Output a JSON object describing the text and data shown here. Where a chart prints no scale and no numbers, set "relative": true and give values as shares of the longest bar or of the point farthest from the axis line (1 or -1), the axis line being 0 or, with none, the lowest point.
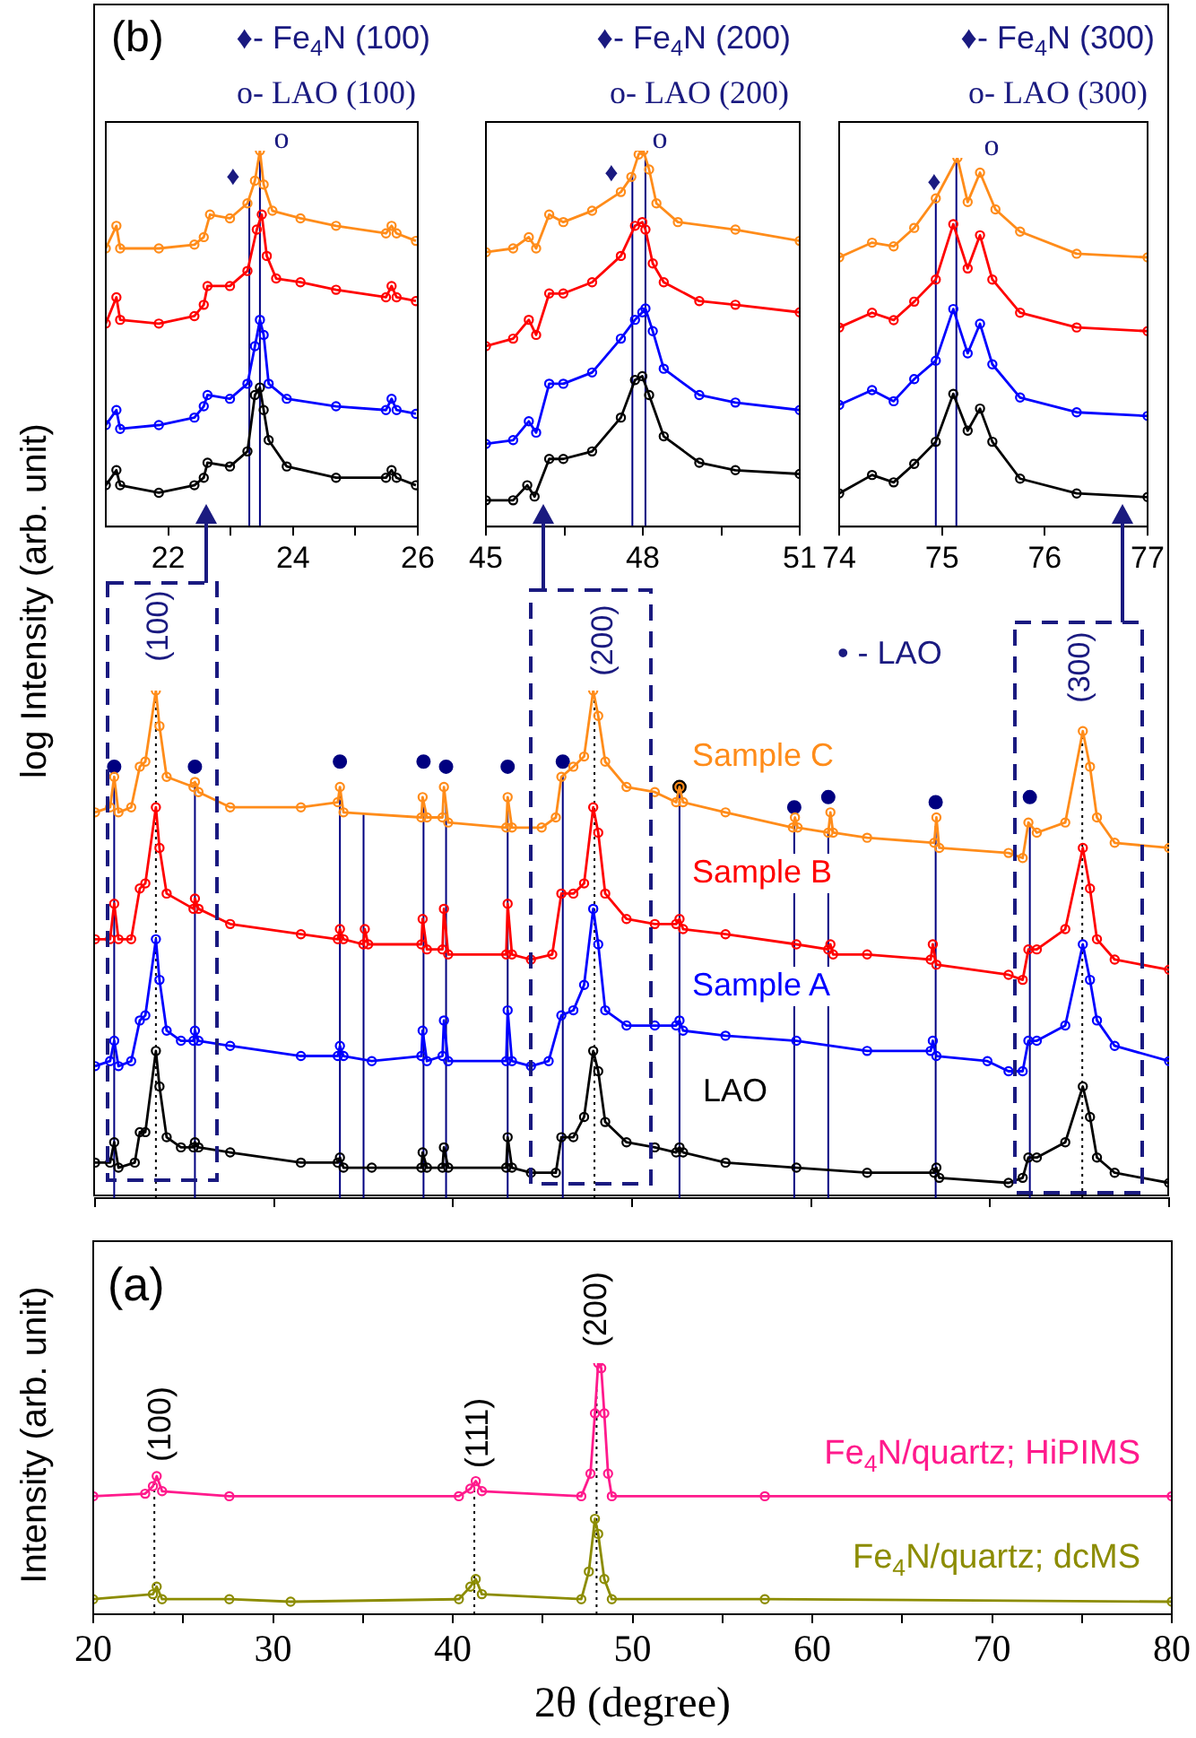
{
  "chart_data": [
    {
      "type": "line",
      "relative": true,
      "xlim": [
        21,
        26
      ],
      "xticks": [
        22,
        {
          "value": 23,
          "label": null
        },
        24,
        {
          "value": 25,
          "label": null
        },
        26
      ],
      "tick_labels": "x",
      "marker": "circle",
      "line_style": "solid",
      "legend": false,
      "grid": false,
      "annotations": [
        "♦- Fe$_{4}$N (100)",
        "o- LAO (100)",
        "♦",
        "o"
      ],
      "ref_lines": [
        {
          "axis": "x",
          "value": 23.3,
          "color": "#000080"
        },
        {
          "axis": "x",
          "value": 23.47,
          "color": "#000080"
        }
      ],
      "series": [
        {
          "color": "#000000",
          "x": [
            21.0,
            21.17,
            21.23,
            21.85,
            22.42,
            22.57,
            22.63,
            22.99,
            23.27,
            23.39,
            23.47,
            23.53,
            23.61,
            23.9,
            24.69,
            25.49,
            25.58,
            25.66,
            25.97
          ],
          "values": [
            0.11,
            0.15,
            0.11,
            0.09,
            0.11,
            0.13,
            0.17,
            0.16,
            0.2,
            0.35,
            0.37,
            0.31,
            0.23,
            0.16,
            0.13,
            0.13,
            0.15,
            0.13,
            0.11
          ]
        },
        {
          "color": "#0000ff",
          "x": [
            21.0,
            21.17,
            21.23,
            21.85,
            22.42,
            22.57,
            22.63,
            22.99,
            23.27,
            23.39,
            23.47,
            23.53,
            23.61,
            23.9,
            24.69,
            25.49,
            25.58,
            25.66,
            25.97
          ],
          "values": [
            0.27,
            0.31,
            0.26,
            0.27,
            0.29,
            0.32,
            0.35,
            0.34,
            0.38,
            0.48,
            0.55,
            0.51,
            0.38,
            0.34,
            0.32,
            0.31,
            0.34,
            0.31,
            0.3
          ]
        },
        {
          "color": "#ff0000",
          "x": [
            21.0,
            21.17,
            21.23,
            21.85,
            22.42,
            22.57,
            22.63,
            22.99,
            23.27,
            23.42,
            23.5,
            23.58,
            23.73,
            24.12,
            24.69,
            25.49,
            25.58,
            25.66,
            25.97
          ],
          "values": [
            0.54,
            0.61,
            0.55,
            0.54,
            0.56,
            0.59,
            0.64,
            0.64,
            0.68,
            0.79,
            0.83,
            0.72,
            0.66,
            0.65,
            0.63,
            0.61,
            0.64,
            0.61,
            0.6
          ]
        },
        {
          "color": "#ff8c1a",
          "x": [
            21.0,
            21.17,
            21.23,
            21.85,
            22.42,
            22.57,
            22.67,
            22.99,
            23.27,
            23.39,
            23.47,
            23.53,
            23.67,
            24.12,
            24.69,
            25.49,
            25.58,
            25.66,
            25.97
          ],
          "values": [
            0.74,
            0.8,
            0.74,
            0.74,
            0.75,
            0.77,
            0.83,
            0.82,
            0.86,
            0.92,
            1.0,
            0.91,
            0.84,
            0.82,
            0.8,
            0.78,
            0.8,
            0.78,
            0.76
          ]
        }
      ]
    },
    {
      "type": "line",
      "relative": true,
      "xlim": [
        45,
        51
      ],
      "xticks": [
        45,
        {
          "value": 46.5,
          "label": null
        },
        48,
        {
          "value": 49.5,
          "label": null
        },
        51
      ],
      "tick_labels": "x",
      "marker": "circle",
      "line_style": "solid",
      "legend": false,
      "grid": false,
      "annotations": [
        "♦- Fe$_{4}$N (200)",
        "o- LAO (200)",
        "♦",
        "o"
      ],
      "ref_lines": [
        {
          "axis": "x",
          "value": 47.8,
          "color": "#000080"
        },
        {
          "axis": "x",
          "value": 48.05,
          "color": "#000080"
        }
      ],
      "series": [
        {
          "color": "#000000",
          "x": [
            45.0,
            45.52,
            45.79,
            45.93,
            46.21,
            46.48,
            47.03,
            47.58,
            47.85,
            47.99,
            48.12,
            48.4,
            49.08,
            49.77,
            51.0
          ],
          "values": [
            0.07,
            0.07,
            0.11,
            0.08,
            0.18,
            0.18,
            0.2,
            0.29,
            0.39,
            0.4,
            0.35,
            0.24,
            0.17,
            0.15,
            0.14
          ]
        },
        {
          "color": "#0000ff",
          "x": [
            45.0,
            45.52,
            45.82,
            45.96,
            46.21,
            46.48,
            47.03,
            47.58,
            47.85,
            47.99,
            48.05,
            48.19,
            48.4,
            49.08,
            49.77,
            51.0
          ],
          "values": [
            0.22,
            0.23,
            0.28,
            0.25,
            0.38,
            0.38,
            0.41,
            0.5,
            0.55,
            0.57,
            0.58,
            0.52,
            0.42,
            0.35,
            0.33,
            0.31
          ]
        },
        {
          "color": "#ff0000",
          "x": [
            45.0,
            45.52,
            45.82,
            45.96,
            46.21,
            46.48,
            47.03,
            47.58,
            47.85,
            47.99,
            48.05,
            48.19,
            48.4,
            49.08,
            49.77,
            51.0
          ],
          "values": [
            0.48,
            0.5,
            0.55,
            0.51,
            0.62,
            0.62,
            0.65,
            0.72,
            0.8,
            0.81,
            0.79,
            0.7,
            0.65,
            0.6,
            0.59,
            0.57
          ]
        },
        {
          "color": "#ff8c1a",
          "x": [
            45.0,
            45.52,
            45.82,
            45.96,
            46.21,
            46.48,
            47.03,
            47.58,
            47.78,
            47.92,
            48.01,
            48.12,
            48.26,
            48.67,
            49.77,
            51.0
          ],
          "values": [
            0.73,
            0.74,
            0.77,
            0.74,
            0.83,
            0.81,
            0.84,
            0.89,
            0.93,
            0.99,
            1.0,
            0.95,
            0.86,
            0.81,
            0.79,
            0.76
          ]
        }
      ]
    },
    {
      "type": "line",
      "relative": true,
      "xlim": [
        74,
        77
      ],
      "xticks": [
        74,
        75,
        76,
        77
      ],
      "tick_labels": "x",
      "marker": "circle",
      "line_style": "solid",
      "legend": false,
      "grid": false,
      "annotations": [
        "♦- Fe$_{4}$N (300)",
        "o- LAO (300)",
        "♦",
        "o"
      ],
      "ref_lines": [
        {
          "axis": "x",
          "value": 74.94,
          "color": "#000080"
        },
        {
          "axis": "x",
          "value": 75.14,
          "color": "#000080"
        }
      ],
      "series": [
        {
          "color": "#000000",
          "x": [
            74.0,
            74.32,
            74.53,
            74.73,
            74.94,
            75.11,
            75.25,
            75.37,
            75.49,
            75.76,
            76.31,
            77.0
          ],
          "values": [
            0.09,
            0.14,
            0.12,
            0.17,
            0.23,
            0.36,
            0.26,
            0.32,
            0.23,
            0.13,
            0.09,
            0.08
          ]
        },
        {
          "color": "#0000ff",
          "x": [
            74.0,
            74.32,
            74.53,
            74.73,
            74.94,
            75.11,
            75.25,
            75.37,
            75.49,
            75.76,
            76.31,
            77.0
          ],
          "values": [
            0.33,
            0.37,
            0.34,
            0.4,
            0.45,
            0.59,
            0.47,
            0.55,
            0.44,
            0.35,
            0.31,
            0.3
          ]
        },
        {
          "color": "#ff0000",
          "x": [
            74.0,
            74.32,
            74.53,
            74.73,
            74.94,
            75.11,
            75.25,
            75.37,
            75.49,
            75.76,
            76.31,
            77.0
          ],
          "values": [
            0.54,
            0.58,
            0.56,
            0.61,
            0.67,
            0.82,
            0.7,
            0.79,
            0.67,
            0.58,
            0.54,
            0.53
          ]
        },
        {
          "color": "#ff8c1a",
          "x": [
            74.0,
            74.32,
            74.53,
            74.73,
            74.94,
            75.15,
            75.25,
            75.37,
            75.52,
            75.76,
            76.31,
            77.0
          ],
          "values": [
            0.73,
            0.77,
            0.76,
            0.81,
            0.89,
            1.0,
            0.88,
            0.96,
            0.86,
            0.8,
            0.74,
            0.73
          ]
        }
      ]
    },
    {
      "type": "line",
      "relative": true,
      "xlim": [
        20,
        80
      ],
      "xticks": [
        20,
        30,
        40,
        50,
        60,
        70,
        80
      ],
      "tick_labels": false,
      "marker": "circle",
      "line_style": "solid",
      "legend": false,
      "grid": false,
      "ylabel": "log Intensity (arb. unit)",
      "annotations": [
        "(b)",
        "(100)",
        "(200)",
        "(300)",
        "• - LAO"
      ],
      "ref_lines": [
        {
          "axis": "x",
          "value": 21.07,
          "color": "#000080"
        },
        {
          "axis": "x",
          "value": 25.58,
          "color": "#000080"
        },
        {
          "axis": "x",
          "value": 33.68,
          "color": "#000080"
        },
        {
          "axis": "x",
          "value": 35.0,
          "color": "#000080"
        },
        {
          "axis": "x",
          "value": 38.35,
          "color": "#000080"
        },
        {
          "axis": "x",
          "value": 39.61,
          "color": "#000080"
        },
        {
          "axis": "x",
          "value": 43.05,
          "color": "#000080"
        },
        {
          "axis": "x",
          "value": 46.13,
          "color": "#000080"
        },
        {
          "axis": "x",
          "value": 52.65,
          "color": "#000080"
        },
        {
          "axis": "x",
          "value": 59.06,
          "color": "#000080"
        },
        {
          "axis": "x",
          "value": 60.96,
          "color": "#000080"
        },
        {
          "axis": "x",
          "value": 66.96,
          "color": "#000080"
        },
        {
          "axis": "x",
          "value": 72.22,
          "color": "#000080"
        },
        {
          "axis": "x",
          "value": 23.4,
          "color": "#000000",
          "line_style": "dotted"
        },
        {
          "axis": "x",
          "value": 47.9,
          "color": "#000000",
          "line_style": "dotted"
        },
        {
          "axis": "x",
          "value": 75.15,
          "color": "#000000",
          "line_style": "dotted"
        }
      ],
      "series": [
        {
          "name": "LAO",
          "color": "#000000",
          "x": [
            20,
            20.84,
            21.07,
            21.31,
            22.22,
            22.5,
            22.81,
            23.4,
            23.6,
            24.0,
            24.8,
            25.5,
            25.58,
            25.78,
            27.55,
            31.5,
            33.56,
            33.68,
            33.88,
            35.46,
            38.23,
            38.3,
            38.54,
            39.41,
            39.49,
            39.73,
            42.97,
            43.05,
            43.29,
            44.35,
            45.74,
            46.05,
            46.72,
            47.32,
            47.83,
            48.11,
            48.5,
            49.69,
            51.27,
            52.46,
            52.65,
            52.85,
            55.22,
            59.18,
            63.13,
            66.88,
            67.0,
            67.16,
            71.03,
            71.82,
            72.14,
            72.61,
            74.2,
            75.18,
            75.58,
            75.97,
            76.96,
            80
          ],
          "values": [
            0.07,
            0.07,
            0.11,
            0.06,
            0.07,
            0.13,
            0.13,
            0.29,
            0.22,
            0.12,
            0.1,
            0.1,
            0.11,
            0.1,
            0.09,
            0.07,
            0.07,
            0.08,
            0.06,
            0.06,
            0.06,
            0.09,
            0.06,
            0.06,
            0.1,
            0.06,
            0.06,
            0.12,
            0.06,
            0.05,
            0.05,
            0.12,
            0.12,
            0.16,
            0.29,
            0.25,
            0.15,
            0.11,
            0.1,
            0.09,
            0.1,
            0.09,
            0.07,
            0.06,
            0.05,
            0.05,
            0.06,
            0.04,
            0.03,
            0.04,
            0.08,
            0.08,
            0.11,
            0.22,
            0.16,
            0.08,
            0.05,
            0.03
          ]
        },
        {
          "name": "Sample A",
          "color": "#0000ff",
          "x": [
            20,
            20.84,
            21.07,
            21.31,
            22.02,
            22.5,
            22.81,
            23.4,
            23.6,
            24.0,
            24.8,
            25.5,
            25.58,
            25.78,
            27.55,
            31.5,
            33.56,
            33.68,
            33.88,
            35.46,
            38.23,
            38.3,
            38.54,
            39.41,
            39.49,
            39.73,
            42.97,
            43.05,
            43.29,
            44.35,
            45.34,
            46.05,
            46.72,
            47.32,
            47.83,
            48.11,
            48.5,
            49.69,
            51.27,
            52.46,
            52.65,
            52.85,
            55.22,
            59.18,
            63.13,
            66.68,
            66.8,
            67.0,
            69.85,
            71.03,
            71.82,
            72.14,
            72.61,
            74.2,
            75.18,
            75.58,
            75.97,
            76.96,
            80
          ],
          "values": [
            0.26,
            0.27,
            0.31,
            0.26,
            0.27,
            0.35,
            0.36,
            0.51,
            0.43,
            0.33,
            0.31,
            0.31,
            0.33,
            0.31,
            0.3,
            0.28,
            0.28,
            0.3,
            0.28,
            0.27,
            0.28,
            0.33,
            0.27,
            0.28,
            0.35,
            0.27,
            0.27,
            0.37,
            0.27,
            0.26,
            0.27,
            0.36,
            0.37,
            0.42,
            0.57,
            0.5,
            0.37,
            0.34,
            0.34,
            0.34,
            0.35,
            0.33,
            0.32,
            0.31,
            0.29,
            0.29,
            0.31,
            0.28,
            0.27,
            0.25,
            0.25,
            0.31,
            0.31,
            0.34,
            0.5,
            0.43,
            0.35,
            0.3,
            0.27
          ]
        },
        {
          "name": "Sample B",
          "color": "#ff0000",
          "x": [
            20,
            20.84,
            21.07,
            21.31,
            22.02,
            22.5,
            22.81,
            23.4,
            23.6,
            24.0,
            25.5,
            25.58,
            25.78,
            27.55,
            31.5,
            33.56,
            33.68,
            33.88,
            34.99,
            35.07,
            35.26,
            38.23,
            38.3,
            38.54,
            39.41,
            39.49,
            39.73,
            42.97,
            43.05,
            43.29,
            44.35,
            45.54,
            46.05,
            46.72,
            47.32,
            47.83,
            48.11,
            48.5,
            49.69,
            51.27,
            52.46,
            52.65,
            52.85,
            55.22,
            59.18,
            60.96,
            61.08,
            61.23,
            63.13,
            66.68,
            66.8,
            67.0,
            71.03,
            71.82,
            72.14,
            72.61,
            74.2,
            75.18,
            75.58,
            75.97,
            76.96,
            80
          ],
          "values": [
            0.51,
            0.51,
            0.58,
            0.51,
            0.51,
            0.61,
            0.62,
            0.77,
            0.69,
            0.6,
            0.57,
            0.59,
            0.57,
            0.54,
            0.52,
            0.51,
            0.53,
            0.51,
            0.5,
            0.53,
            0.5,
            0.5,
            0.55,
            0.49,
            0.49,
            0.57,
            0.48,
            0.48,
            0.58,
            0.48,
            0.47,
            0.48,
            0.6,
            0.6,
            0.62,
            0.77,
            0.72,
            0.6,
            0.55,
            0.54,
            0.54,
            0.55,
            0.53,
            0.52,
            0.5,
            0.49,
            0.5,
            0.48,
            0.48,
            0.47,
            0.5,
            0.46,
            0.44,
            0.43,
            0.49,
            0.49,
            0.53,
            0.69,
            0.61,
            0.51,
            0.47,
            0.45
          ]
        },
        {
          "name": "Sample C",
          "color": "#ff8c1a",
          "x": [
            20,
            20.84,
            21.07,
            21.31,
            22.02,
            22.5,
            22.81,
            23.4,
            23.6,
            24.0,
            25.5,
            25.58,
            25.78,
            27.55,
            31.5,
            33.56,
            33.68,
            33.88,
            38.23,
            38.3,
            38.54,
            39.41,
            39.49,
            39.73,
            42.97,
            43.05,
            43.29,
            44.95,
            45.74,
            46.05,
            46.72,
            47.32,
            47.83,
            48.11,
            48.5,
            49.69,
            51.27,
            52.46,
            52.65,
            52.85,
            55.22,
            58.98,
            59.1,
            59.25,
            60.96,
            61.08,
            61.23,
            63.13,
            66.88,
            67.0,
            67.16,
            71.03,
            71.82,
            72.14,
            72.61,
            74.2,
            75.18,
            75.58,
            75.97,
            76.96,
            80
          ],
          "values": [
            0.76,
            0.77,
            0.83,
            0.76,
            0.77,
            0.85,
            0.86,
            1.0,
            0.93,
            0.83,
            0.81,
            0.82,
            0.8,
            0.77,
            0.77,
            0.78,
            0.81,
            0.76,
            0.75,
            0.79,
            0.75,
            0.75,
            0.81,
            0.74,
            0.73,
            0.79,
            0.73,
            0.73,
            0.75,
            0.83,
            0.85,
            0.87,
            1.0,
            0.95,
            0.86,
            0.81,
            0.8,
            0.78,
            0.81,
            0.78,
            0.76,
            0.73,
            0.75,
            0.73,
            0.72,
            0.76,
            0.72,
            0.71,
            0.7,
            0.75,
            0.69,
            0.68,
            0.67,
            0.74,
            0.72,
            0.74,
            0.92,
            0.85,
            0.75,
            0.7,
            0.69
          ]
        },
        {
          "type": "scatter",
          "colors": [
            "#000080",
            "#000080",
            "#000080",
            "#000080",
            "#000080",
            "#000080",
            "#000080",
            "#000000",
            "#000080",
            "#000080",
            "#000080",
            "#000080"
          ],
          "x": [
            21.07,
            25.58,
            33.68,
            38.35,
            39.61,
            43.05,
            46.13,
            52.65,
            59.06,
            60.96,
            66.96,
            72.22
          ],
          "values": [
            0.85,
            0.85,
            0.86,
            0.86,
            0.85,
            0.85,
            0.86,
            0.81,
            0.77,
            0.79,
            0.78,
            0.79
          ]
        }
      ]
    },
    {
      "type": "line",
      "relative": true,
      "xlim": [
        20,
        80
      ],
      "xticks": [
        20,
        {
          "value": 25,
          "label": null
        },
        30,
        {
          "value": 35,
          "label": null
        },
        40,
        {
          "value": 45,
          "label": null
        },
        50,
        {
          "value": 55,
          "label": null
        },
        60,
        {
          "value": 65,
          "label": null
        },
        70,
        {
          "value": 75,
          "label": null
        },
        80
      ],
      "tick_labels": "x",
      "marker": "circle",
      "line_style": "solid",
      "legend": false,
      "grid": false,
      "xlabel": "2θ (degree)",
      "ylabel": "Intensity (arb. unit)",
      "annotations": [
        "(a)",
        "(100)",
        "(111)",
        "(200)"
      ],
      "ref_lines": [
        {
          "axis": "x",
          "value": 23.4,
          "color": "#000000",
          "line_style": "dotted"
        },
        {
          "axis": "x",
          "value": 41.2,
          "color": "#000000",
          "line_style": "dotted"
        },
        {
          "axis": "x",
          "value": 48.0,
          "color": "#000000",
          "line_style": "dotted"
        }
      ],
      "series": [
        {
          "name": "Fe$_{4}$N/quartz; HiPIMS",
          "color": "#ff1a8c",
          "x": [
            20,
            22.89,
            23.32,
            23.53,
            23.83,
            27.57,
            40.34,
            40.98,
            41.28,
            41.62,
            47.15,
            47.66,
            47.91,
            48.09,
            48.26,
            48.43,
            48.64,
            48.85,
            57.36,
            80
          ],
          "values": [
            0.47,
            0.48,
            0.51,
            0.55,
            0.49,
            0.47,
            0.47,
            0.5,
            0.53,
            0.49,
            0.47,
            0.56,
            0.8,
            1.0,
            0.98,
            0.8,
            0.56,
            0.47,
            0.47,
            0.47
          ]
        },
        {
          "name": "Fe$_{4}$N/quartz; dcMS",
          "color": "#8c8c00",
          "x": [
            20,
            23.32,
            23.53,
            23.83,
            27.57,
            30.98,
            40.34,
            40.98,
            41.28,
            41.62,
            47.15,
            47.57,
            47.91,
            48.09,
            48.43,
            48.85,
            57.36,
            80
          ],
          "values": [
            0.06,
            0.08,
            0.11,
            0.06,
            0.06,
            0.05,
            0.06,
            0.11,
            0.14,
            0.08,
            0.06,
            0.17,
            0.38,
            0.32,
            0.14,
            0.06,
            0.06,
            0.05
          ]
        }
      ]
    }
  ]
}
